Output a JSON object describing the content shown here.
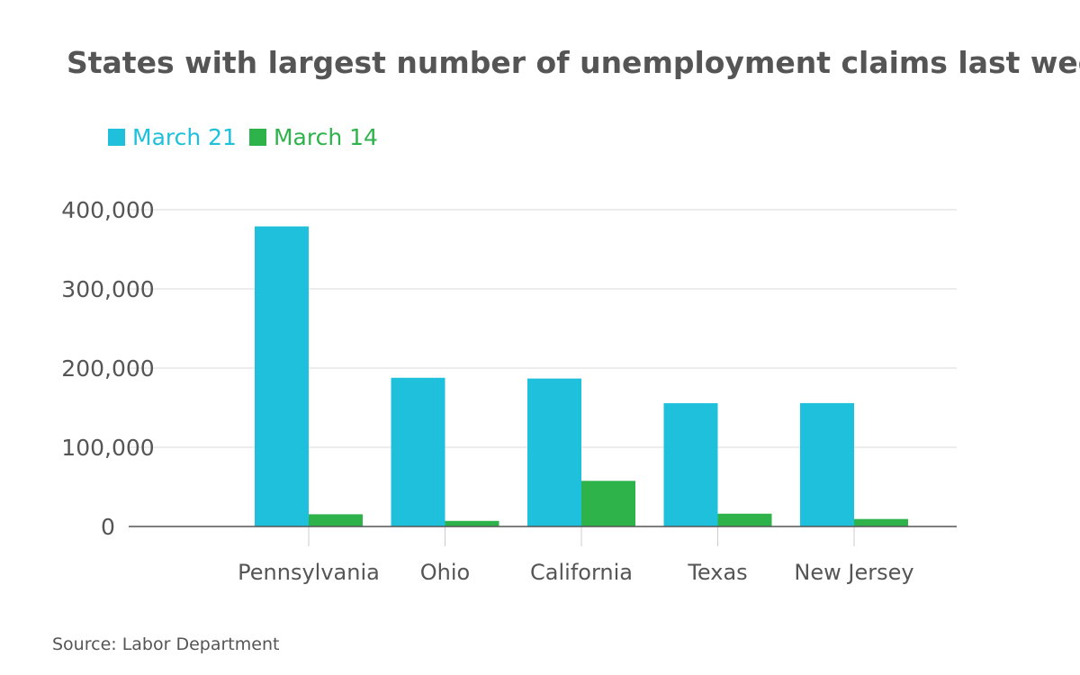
{
  "chart_data": {
    "type": "bar",
    "title": "States with largest number of unemployment claims last week",
    "categories": [
      "Pennsylvania",
      "Ohio",
      "California",
      "Texas",
      "New Jersey"
    ],
    "series": [
      {
        "name": "March 21",
        "color": "#1fc0dc",
        "values": [
          378908,
          187784,
          186809,
          155657,
          155815
        ]
      },
      {
        "name": "March 14",
        "color": "#2db34a",
        "values": [
          15439,
          7046,
          57606,
          16176,
          9467
        ]
      }
    ],
    "y_ticks": [
      {
        "value": 0,
        "label": "0"
      },
      {
        "value": 100000,
        "label": "100,000"
      },
      {
        "value": 200000,
        "label": "200,000"
      },
      {
        "value": 300000,
        "label": "300,000"
      },
      {
        "value": 400000,
        "label": "400,000"
      }
    ],
    "ylim": [
      0,
      400000
    ],
    "grid": true,
    "legend_position": "top-left",
    "source": "Source: Labor Department"
  }
}
